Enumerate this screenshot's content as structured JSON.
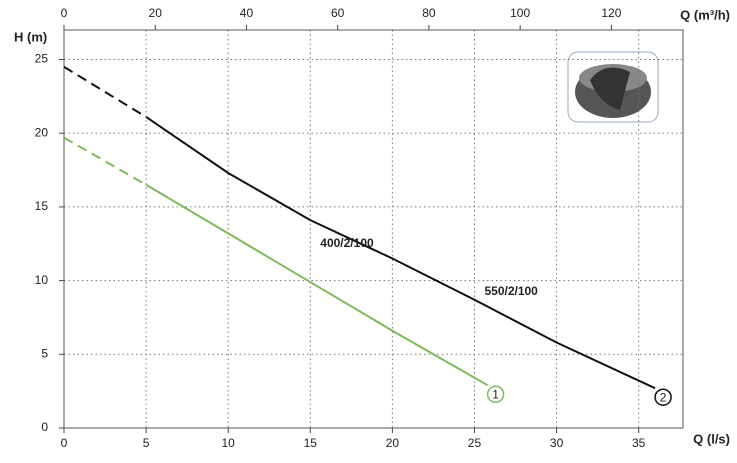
{
  "chart_data": {
    "type": "line",
    "x_label": "Q (l/s)",
    "x2_label": "Q (m³/h)",
    "y_label": "H (m)",
    "xlim": [
      0,
      37.7
    ],
    "xticks": [
      0,
      5,
      10,
      15,
      20,
      25,
      30,
      35
    ],
    "x2lim": [
      0,
      135.7
    ],
    "x2ticks": [
      0,
      20,
      40,
      60,
      80,
      100,
      120
    ],
    "ylim": [
      0,
      27
    ],
    "yticks": [
      0,
      5,
      10,
      15,
      20,
      25
    ],
    "grid": true,
    "dash_first_segment": true,
    "series": [
      {
        "name": "550/2/100",
        "end_label": "2",
        "color": "#111111",
        "x": [
          0,
          5,
          10,
          15,
          20,
          25,
          30,
          36
        ],
        "values": [
          24.5,
          21.1,
          17.3,
          14.1,
          11.5,
          8.7,
          5.8,
          2.7
        ]
      },
      {
        "name": "400/2/100",
        "end_label": "1",
        "color": "#7dbb5a",
        "x": [
          0,
          5,
          10,
          15,
          20,
          25.8
        ],
        "values": [
          19.7,
          16.5,
          13.2,
          9.9,
          6.6,
          2.9
        ]
      }
    ]
  }
}
